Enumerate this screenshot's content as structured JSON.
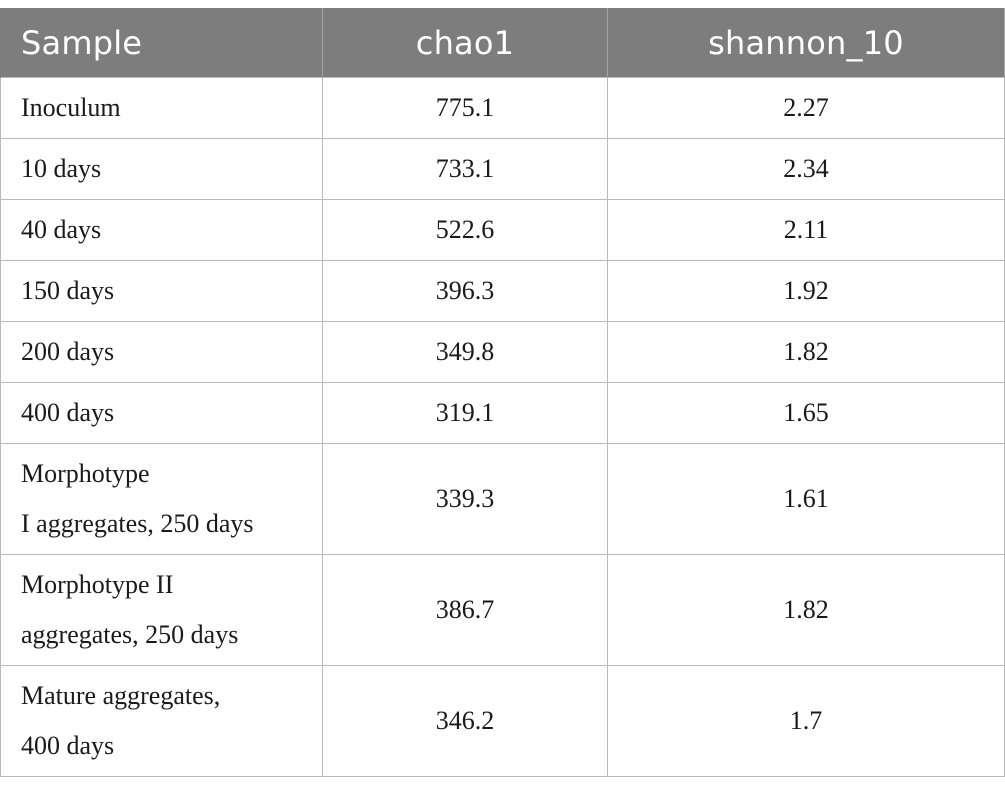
{
  "table": {
    "headers": [
      "Sample",
      "chao1",
      "shannon_10"
    ],
    "rows": [
      {
        "sample": [
          "Inoculum"
        ],
        "chao1": "775.1",
        "shannon_10": "2.27"
      },
      {
        "sample": [
          "10 days"
        ],
        "chao1": "733.1",
        "shannon_10": "2.34"
      },
      {
        "sample": [
          "40 days"
        ],
        "chao1": "522.6",
        "shannon_10": "2.11"
      },
      {
        "sample": [
          "150 days"
        ],
        "chao1": "396.3",
        "shannon_10": "1.92"
      },
      {
        "sample": [
          "200 days"
        ],
        "chao1": "349.8",
        "shannon_10": "1.82"
      },
      {
        "sample": [
          "400 days"
        ],
        "chao1": "319.1",
        "shannon_10": "1.65"
      },
      {
        "sample": [
          "Morphotype",
          "I aggregates, 250 days"
        ],
        "chao1": "339.3",
        "shannon_10": "1.61"
      },
      {
        "sample": [
          "Morphotype II",
          "aggregates, 250 days"
        ],
        "chao1": "386.7",
        "shannon_10": "1.82"
      },
      {
        "sample": [
          "Mature aggregates,",
          "400 days"
        ],
        "chao1": "346.2",
        "shannon_10": "1.7"
      }
    ]
  }
}
